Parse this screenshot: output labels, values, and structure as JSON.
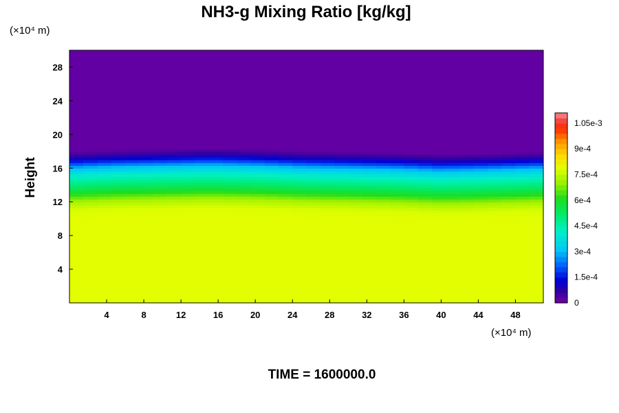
{
  "chart_data": {
    "type": "heatmap",
    "title": "NH3-g Mixing Ratio [kg/kg]",
    "xlabel": "",
    "ylabel": "Height",
    "x_scale_note": "(×10⁴ m)",
    "y_scale_note": "(×10⁴ m)",
    "xlim": [
      0,
      51
    ],
    "ylim": [
      0,
      30
    ],
    "x_ticks": [
      "4",
      "8",
      "12",
      "16",
      "20",
      "24",
      "28",
      "32",
      "36",
      "40",
      "44",
      "48"
    ],
    "y_ticks": [
      "4",
      "8",
      "12",
      "16",
      "20",
      "24",
      "28"
    ],
    "x_tick_values": [
      4,
      8,
      12,
      16,
      20,
      24,
      28,
      32,
      36,
      40,
      44,
      48
    ],
    "y_tick_values": [
      4,
      8,
      12,
      16,
      20,
      24,
      28
    ],
    "colorbar": {
      "min": 0,
      "max": 0.00111,
      "tick_labels": [
        "0",
        "1.5e-4",
        "3e-4",
        "4.5e-4",
        "6e-4",
        "7.5e-4",
        "9e-4",
        "1.05e-3"
      ],
      "tick_values": [
        0,
        0.00015,
        0.0003,
        0.00045,
        0.0006,
        0.00075,
        0.0009,
        0.00105
      ]
    },
    "profile": {
      "heights": [
        0,
        10,
        11,
        12,
        13,
        14,
        15,
        16,
        16.5,
        17,
        17.5,
        18,
        30
      ],
      "values": [
        0.00079,
        0.00079,
        0.00078,
        0.00072,
        0.0006,
        0.0005,
        0.00042,
        0.0003,
        0.0002,
        0.00012,
        6e-05,
        2e-05,
        2e-05
      ]
    },
    "top_edge_height": {
      "x": [
        0,
        5,
        10,
        15,
        20,
        25,
        30,
        35,
        40,
        45,
        51
      ],
      "height": [
        17.6,
        17.8,
        17.9,
        18.0,
        17.9,
        17.7,
        17.6,
        17.5,
        17.3,
        17.4,
        17.6
      ]
    },
    "grid": false
  },
  "footer": {
    "time_label": "TIME = 1600000.0"
  }
}
